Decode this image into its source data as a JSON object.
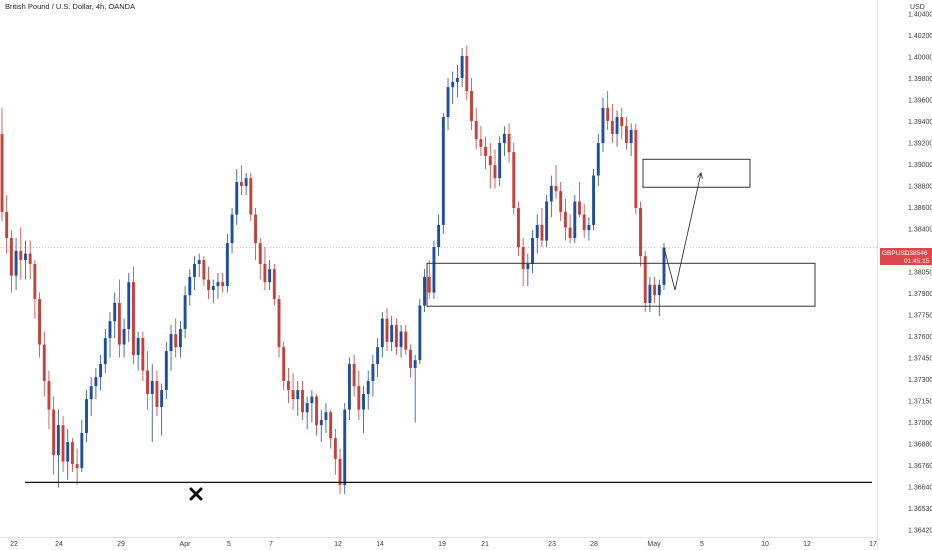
{
  "header": {
    "title": "British Pound / U.S. Dollar, 4h, OANDA"
  },
  "price_axis": {
    "currency": "USD"
  },
  "price_tag": {
    "symbol": "GBPUSD",
    "price": "1.38546",
    "countdown": "01:45:15",
    "color": "#e0454b"
  },
  "colors": {
    "up": "#1f4f9c",
    "down": "#c8403a",
    "support_line": "#111111",
    "zone_border": "#333333",
    "marker": "#111111"
  },
  "marker": {
    "icon": "x-mark-icon"
  },
  "chart_data": {
    "type": "candlestick",
    "title": "British Pound / U.S. Dollar, 4h, OANDA",
    "ylabel": "USD",
    "ylim": [
      1.3632,
      1.4045
    ],
    "y_ticks": [
      "1.40400",
      "1.40200",
      "1.40000",
      "1.39800",
      "1.39600",
      "1.39400",
      "1.39200",
      "1.39000",
      "1.38800",
      "1.38600",
      "1.38400",
      "1.38200",
      "1.38050",
      "1.37900",
      "1.37750",
      "1.37600",
      "1.37450",
      "1.37300",
      "1.37150",
      "1.37000",
      "1.36880",
      "1.36760",
      "1.36640",
      "1.36530",
      "1.36420"
    ],
    "x_ticks": [
      "22",
      "24",
      "29",
      "Apr",
      "5",
      "7",
      "12",
      "14",
      "19",
      "21",
      "23",
      "28",
      "May",
      "5",
      "10",
      "12",
      "17"
    ],
    "current_price": 1.38546,
    "support_level": 1.3674,
    "zones": [
      {
        "name": "upper-zone",
        "top": 1.39225,
        "bottom": 1.3901
      },
      {
        "name": "lower-zone",
        "top": 1.38425,
        "bottom": 1.38095
      }
    ],
    "projection": [
      [
        1.38546,
        1.3822
      ],
      [
        1.3822,
        1.3912
      ]
    ],
    "candles": [
      [
        1.3942,
        1.3962,
        1.3875,
        1.3882
      ],
      [
        1.3882,
        1.3895,
        1.385,
        1.3862
      ],
      [
        1.3862,
        1.3868,
        1.382,
        1.3833
      ],
      [
        1.3833,
        1.3862,
        1.3822,
        1.3852
      ],
      [
        1.3852,
        1.387,
        1.383,
        1.3845
      ],
      [
        1.3845,
        1.386,
        1.383,
        1.385
      ],
      [
        1.385,
        1.386,
        1.383,
        1.3842
      ],
      [
        1.3842,
        1.3845,
        1.38,
        1.3815
      ],
      [
        1.3815,
        1.382,
        1.377,
        1.378
      ],
      [
        1.378,
        1.379,
        1.374,
        1.3752
      ],
      [
        1.3752,
        1.376,
        1.3715,
        1.373
      ],
      [
        1.373,
        1.374,
        1.368,
        1.3695
      ],
      [
        1.3695,
        1.373,
        1.367,
        1.3718
      ],
      [
        1.3718,
        1.3725,
        1.3682,
        1.369
      ],
      [
        1.369,
        1.3715,
        1.3676,
        1.3705
      ],
      [
        1.3705,
        1.3708,
        1.3682,
        1.3688
      ],
      [
        1.3688,
        1.37,
        1.3672,
        1.3685
      ],
      [
        1.3685,
        1.3722,
        1.3682,
        1.3712
      ],
      [
        1.3712,
        1.3745,
        1.3705,
        1.3738
      ],
      [
        1.3738,
        1.3755,
        1.3725,
        1.3748
      ],
      [
        1.3748,
        1.3762,
        1.3738,
        1.3755
      ],
      [
        1.3755,
        1.3772,
        1.3745,
        1.3765
      ],
      [
        1.3765,
        1.3792,
        1.3758,
        1.3785
      ],
      [
        1.3785,
        1.3805,
        1.377,
        1.3798
      ],
      [
        1.3798,
        1.382,
        1.3785,
        1.3812
      ],
      [
        1.3812,
        1.383,
        1.377,
        1.378
      ],
      [
        1.378,
        1.38,
        1.377,
        1.3792
      ],
      [
        1.3792,
        1.3835,
        1.3782,
        1.3828
      ],
      [
        1.3828,
        1.384,
        1.3765,
        1.3772
      ],
      [
        1.3772,
        1.379,
        1.376,
        1.3785
      ],
      [
        1.3785,
        1.379,
        1.3752,
        1.376
      ],
      [
        1.376,
        1.3775,
        1.373,
        1.3742
      ],
      [
        1.3742,
        1.3765,
        1.3705,
        1.3752
      ],
      [
        1.3752,
        1.376,
        1.3725,
        1.3732
      ],
      [
        1.3732,
        1.375,
        1.371,
        1.3745
      ],
      [
        1.3745,
        1.3782,
        1.3738,
        1.3775
      ],
      [
        1.3775,
        1.3795,
        1.376,
        1.3788
      ],
      [
        1.3788,
        1.38,
        1.377,
        1.3778
      ],
      [
        1.3778,
        1.3798,
        1.377,
        1.3792
      ],
      [
        1.3792,
        1.3825,
        1.3785,
        1.3818
      ],
      [
        1.3818,
        1.3838,
        1.381,
        1.3832
      ],
      [
        1.3832,
        1.3848,
        1.3822,
        1.3842
      ],
      [
        1.3842,
        1.385,
        1.3832,
        1.3845
      ],
      [
        1.3845,
        1.3848,
        1.3825,
        1.383
      ],
      [
        1.383,
        1.384,
        1.3815,
        1.3822
      ],
      [
        1.3822,
        1.383,
        1.3812,
        1.3825
      ],
      [
        1.3825,
        1.3835,
        1.3815,
        1.3828
      ],
      [
        1.3828,
        1.3835,
        1.382,
        1.3825
      ],
      [
        1.3825,
        1.3865,
        1.382,
        1.3858
      ],
      [
        1.3858,
        1.3885,
        1.385,
        1.388
      ],
      [
        1.388,
        1.3915,
        1.3872,
        1.3905
      ],
      [
        1.3905,
        1.3918,
        1.3895,
        1.3902
      ],
      [
        1.3902,
        1.3912,
        1.3895,
        1.3908
      ],
      [
        1.3908,
        1.3912,
        1.3875,
        1.388
      ],
      [
        1.388,
        1.3885,
        1.3845,
        1.3858
      ],
      [
        1.3858,
        1.3862,
        1.383,
        1.3842
      ],
      [
        1.3842,
        1.3855,
        1.3822,
        1.3828
      ],
      [
        1.3828,
        1.3845,
        1.3822,
        1.3838
      ],
      [
        1.3838,
        1.3842,
        1.381,
        1.3815
      ],
      [
        1.3815,
        1.3818,
        1.377,
        1.3778
      ],
      [
        1.3778,
        1.3782,
        1.3745,
        1.3752
      ],
      [
        1.3752,
        1.3762,
        1.3735,
        1.3745
      ],
      [
        1.3745,
        1.3758,
        1.373,
        1.3738
      ],
      [
        1.3738,
        1.3752,
        1.3725,
        1.3745
      ],
      [
        1.3745,
        1.3752,
        1.3722,
        1.3728
      ],
      [
        1.3728,
        1.374,
        1.3715,
        1.3735
      ],
      [
        1.3735,
        1.3745,
        1.372,
        1.374
      ],
      [
        1.374,
        1.3742,
        1.371,
        1.3718
      ],
      [
        1.3718,
        1.373,
        1.3705,
        1.3722
      ],
      [
        1.3722,
        1.3735,
        1.3712,
        1.3728
      ],
      [
        1.3728,
        1.373,
        1.37,
        1.3708
      ],
      [
        1.3708,
        1.3715,
        1.368,
        1.3692
      ],
      [
        1.3692,
        1.37,
        1.3665,
        1.3672
      ],
      [
        1.3672,
        1.3735,
        1.3665,
        1.373
      ],
      [
        1.373,
        1.377,
        1.3722,
        1.3765
      ],
      [
        1.3765,
        1.3772,
        1.374,
        1.3748
      ],
      [
        1.3748,
        1.376,
        1.3722,
        1.373
      ],
      [
        1.373,
        1.3748,
        1.3712,
        1.3742
      ],
      [
        1.3742,
        1.376,
        1.373,
        1.3752
      ],
      [
        1.3752,
        1.3772,
        1.374,
        1.3765
      ],
      [
        1.3765,
        1.3785,
        1.3755,
        1.3778
      ],
      [
        1.3778,
        1.3805,
        1.377,
        1.38
      ],
      [
        1.38,
        1.3808,
        1.3775,
        1.3782
      ],
      [
        1.3782,
        1.3802,
        1.3775,
        1.3795
      ],
      [
        1.3795,
        1.38,
        1.3772,
        1.3778
      ],
      [
        1.3778,
        1.3795,
        1.377,
        1.379
      ],
      [
        1.379,
        1.3795,
        1.3772,
        1.3776
      ],
      [
        1.3776,
        1.378,
        1.3755,
        1.3762
      ],
      [
        1.3762,
        1.3772,
        1.372,
        1.3768
      ],
      [
        1.3768,
        1.3815,
        1.3765,
        1.381
      ],
      [
        1.381,
        1.3838,
        1.3805,
        1.3832
      ],
      [
        1.3832,
        1.3845,
        1.3815,
        1.382
      ],
      [
        1.382,
        1.386,
        1.3815,
        1.3855
      ],
      [
        1.3855,
        1.388,
        1.3848,
        1.3872
      ],
      [
        1.3872,
        1.3958,
        1.3865,
        1.3955
      ],
      [
        1.3955,
        1.3985,
        1.3945,
        1.3978
      ],
      [
        1.3978,
        1.399,
        1.3965,
        1.3982
      ],
      [
        1.3982,
        1.3995,
        1.397,
        1.3985
      ],
      [
        1.3985,
        1.4008,
        1.3978,
        1.4002
      ],
      [
        1.4002,
        1.401,
        1.3968,
        1.3975
      ],
      [
        1.3975,
        1.3985,
        1.3945,
        1.3952
      ],
      [
        1.3952,
        1.3962,
        1.393,
        1.3938
      ],
      [
        1.3938,
        1.3948,
        1.3925,
        1.3932
      ],
      [
        1.3932,
        1.394,
        1.3915,
        1.3925
      ],
      [
        1.3925,
        1.3935,
        1.39,
        1.3918
      ],
      [
        1.3918,
        1.393,
        1.39,
        1.3908
      ],
      [
        1.3908,
        1.394,
        1.3902,
        1.3935
      ],
      [
        1.3935,
        1.3948,
        1.3925,
        1.3942
      ],
      [
        1.3942,
        1.395,
        1.392,
        1.3928
      ],
      [
        1.3928,
        1.3935,
        1.388,
        1.3885
      ],
      [
        1.3885,
        1.389,
        1.3848,
        1.3855
      ],
      [
        1.3855,
        1.3862,
        1.3825,
        1.3838
      ],
      [
        1.3838,
        1.385,
        1.3825,
        1.3842
      ],
      [
        1.3842,
        1.3868,
        1.3835,
        1.3862
      ],
      [
        1.3862,
        1.388,
        1.385,
        1.3872
      ],
      [
        1.3872,
        1.3885,
        1.3855,
        1.386
      ],
      [
        1.386,
        1.3895,
        1.3855,
        1.389
      ],
      [
        1.389,
        1.391,
        1.3878,
        1.3902
      ],
      [
        1.3902,
        1.3918,
        1.3892,
        1.3898
      ],
      [
        1.3898,
        1.3905,
        1.3875,
        1.3882
      ],
      [
        1.3882,
        1.3892,
        1.386,
        1.387
      ],
      [
        1.387,
        1.388,
        1.3858,
        1.3862
      ],
      [
        1.3862,
        1.3895,
        1.3858,
        1.389
      ],
      [
        1.389,
        1.3905,
        1.3878,
        1.388
      ],
      [
        1.388,
        1.3888,
        1.3862,
        1.3868
      ],
      [
        1.3868,
        1.3878,
        1.386,
        1.3872
      ],
      [
        1.3872,
        1.3915,
        1.3868,
        1.391
      ],
      [
        1.391,
        1.3942,
        1.3902,
        1.3935
      ],
      [
        1.3935,
        1.397,
        1.3928,
        1.3962
      ],
      [
        1.3962,
        1.3975,
        1.3945,
        1.3952
      ],
      [
        1.3952,
        1.3965,
        1.3935,
        1.3942
      ],
      [
        1.3942,
        1.396,
        1.3932,
        1.3955
      ],
      [
        1.3955,
        1.3962,
        1.3938,
        1.3948
      ],
      [
        1.3948,
        1.3955,
        1.393,
        1.3935
      ],
      [
        1.3935,
        1.395,
        1.3925,
        1.3945
      ],
      [
        1.3945,
        1.395,
        1.388,
        1.3885
      ],
      [
        1.3885,
        1.389,
        1.384,
        1.3848
      ],
      [
        1.3848,
        1.3852,
        1.3805,
        1.3812
      ],
      [
        1.3812,
        1.3832,
        1.3805,
        1.3826
      ],
      [
        1.3826,
        1.3832,
        1.3812,
        1.3818
      ],
      [
        1.3818,
        1.383,
        1.3802,
        1.3826
      ],
      [
        1.3826,
        1.3858,
        1.3822,
        1.38546
      ]
    ]
  }
}
